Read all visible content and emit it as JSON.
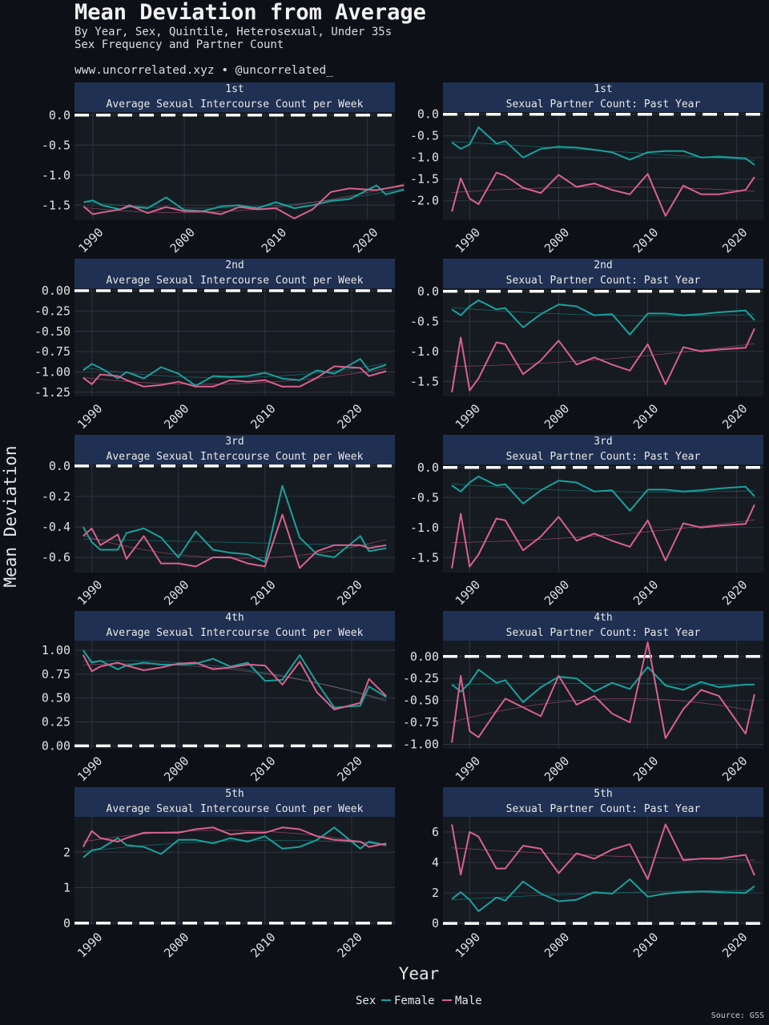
{
  "header": {
    "title": "Mean Deviation from Average",
    "subtitle_line1": "By Year, Sex, Quintile, Heterosexual, Under 35s",
    "subtitle_line2": "Sex Frequency and Partner Count",
    "credit": "www.uncorrelated.xyz • @uncorrelated_"
  },
  "axis": {
    "x_label": "Year",
    "y_label": "Mean Deviation"
  },
  "legend": {
    "title": "Sex",
    "items": [
      {
        "label": "Female",
        "color": "#1aa19b"
      },
      {
        "label": "Male",
        "color": "#d8628d"
      }
    ]
  },
  "source": "Source: GSS",
  "colors": {
    "background": "#0d1117",
    "panel": "#161b22",
    "strip": "#1f3052",
    "grid": "#2e3440",
    "zero_line": "#ffffff"
  },
  "chart_data": [
    {
      "type": "line",
      "quintile": "1st",
      "measure": "Average Sexual Intercourse Count per Week",
      "xlim": [
        1988,
        2023
      ],
      "ylim": [
        -1.75,
        0.05
      ],
      "yticks": [
        0.0,
        -0.5,
        -1.0,
        -1.5
      ],
      "ytick_labels": [
        "0.0",
        "-0.5",
        "-1.0",
        "-1.5"
      ],
      "xticks": [
        1990,
        2000,
        2010,
        2020
      ],
      "x": [
        1989,
        1990,
        1991,
        1993,
        1994,
        1996,
        1998,
        2000,
        2002,
        2004,
        2006,
        2008,
        2010,
        2012,
        2014,
        2016,
        2018,
        2021,
        2022,
        2024
      ],
      "series": [
        {
          "name": "Female",
          "values": [
            -1.45,
            -1.42,
            -1.5,
            -1.57,
            -1.52,
            -1.55,
            -1.37,
            -1.58,
            -1.6,
            -1.52,
            -1.5,
            -1.55,
            -1.45,
            -1.55,
            -1.5,
            -1.43,
            -1.4,
            -1.17,
            -1.32,
            -1.24
          ]
        },
        {
          "name": "Male",
          "values": [
            -1.52,
            -1.65,
            -1.62,
            -1.57,
            -1.5,
            -1.63,
            -1.53,
            -1.6,
            -1.6,
            -1.65,
            -1.53,
            -1.57,
            -1.55,
            -1.72,
            -1.57,
            -1.28,
            -1.22,
            -1.25,
            -1.22,
            -1.17
          ]
        }
      ]
    },
    {
      "type": "line",
      "quintile": "1st",
      "measure": "Sexual Partner Count: Past Year",
      "xlim": [
        1987,
        2023
      ],
      "ylim": [
        -2.45,
        0.05
      ],
      "yticks": [
        0.0,
        -0.5,
        -1.0,
        -1.5,
        -2.0
      ],
      "ytick_labels": [
        "0.0",
        "-0.5",
        "-1.0",
        "-1.5",
        "-2.0"
      ],
      "xticks": [
        1990,
        2000,
        2010,
        2020
      ],
      "x": [
        1988,
        1989,
        1990,
        1991,
        1993,
        1994,
        1996,
        1998,
        2000,
        2002,
        2004,
        2006,
        2008,
        2010,
        2012,
        2014,
        2016,
        2018,
        2021,
        2022
      ],
      "series": [
        {
          "name": "Female",
          "values": [
            -0.65,
            -0.8,
            -0.7,
            -0.3,
            -0.68,
            -0.62,
            -1.0,
            -0.8,
            -0.75,
            -0.77,
            -0.82,
            -0.88,
            -1.05,
            -0.88,
            -0.85,
            -0.85,
            -1.0,
            -0.98,
            -1.02,
            -1.17
          ]
        },
        {
          "name": "Male",
          "values": [
            -2.25,
            -1.48,
            -1.95,
            -2.08,
            -1.35,
            -1.42,
            -1.7,
            -1.82,
            -1.4,
            -1.68,
            -1.6,
            -1.75,
            -1.85,
            -1.38,
            -2.35,
            -1.65,
            -1.85,
            -1.85,
            -1.75,
            -1.45
          ]
        }
      ]
    },
    {
      "type": "line",
      "quintile": "2nd",
      "measure": "Average Sexual Intercourse Count per Week",
      "xlim": [
        1988,
        2025
      ],
      "ylim": [
        -1.3,
        0.03
      ],
      "yticks": [
        0.0,
        -0.25,
        -0.5,
        -0.75,
        -1.0,
        -1.25
      ],
      "ytick_labels": [
        "0.00",
        "-0.25",
        "-0.50",
        "-0.75",
        "-1.00",
        "-1.25"
      ],
      "xticks": [
        1990,
        2000,
        2010,
        2020
      ],
      "x": [
        1989,
        1990,
        1991,
        1993,
        1994,
        1996,
        1998,
        2000,
        2002,
        2004,
        2006,
        2008,
        2010,
        2012,
        2014,
        2016,
        2018,
        2021,
        2022,
        2024
      ],
      "series": [
        {
          "name": "Female",
          "values": [
            -0.98,
            -0.9,
            -0.95,
            -1.08,
            -1.0,
            -1.08,
            -0.94,
            -1.02,
            -1.17,
            -1.05,
            -1.06,
            -1.05,
            -1.01,
            -1.08,
            -1.1,
            -0.98,
            -1.02,
            -0.84,
            -0.98,
            -0.91
          ]
        },
        {
          "name": "Male",
          "values": [
            -1.07,
            -1.15,
            -1.03,
            -1.05,
            -1.1,
            -1.18,
            -1.16,
            -1.12,
            -1.18,
            -1.18,
            -1.1,
            -1.12,
            -1.1,
            -1.18,
            -1.18,
            -1.07,
            -0.93,
            -0.95,
            -1.05,
            -0.99
          ]
        }
      ]
    },
    {
      "type": "line",
      "quintile": "2nd",
      "measure": "Sexual Partner Count: Past Year",
      "xlim": [
        1987,
        2023
      ],
      "ylim": [
        -1.75,
        0.05
      ],
      "yticks": [
        0.0,
        -0.5,
        -1.0,
        -1.5
      ],
      "ytick_labels": [
        "0.0",
        "-0.5",
        "-1.0",
        "-1.5"
      ],
      "xticks": [
        1990,
        2000,
        2010,
        2020
      ],
      "x": [
        1988,
        1989,
        1990,
        1991,
        1993,
        1994,
        1996,
        1998,
        2000,
        2002,
        2004,
        2006,
        2008,
        2010,
        2012,
        2014,
        2016,
        2018,
        2021,
        2022
      ],
      "series": [
        {
          "name": "Female",
          "values": [
            -0.3,
            -0.4,
            -0.25,
            -0.15,
            -0.3,
            -0.28,
            -0.6,
            -0.38,
            -0.22,
            -0.25,
            -0.4,
            -0.38,
            -0.72,
            -0.37,
            -0.37,
            -0.4,
            -0.38,
            -0.35,
            -0.32,
            -0.48
          ]
        },
        {
          "name": "Male",
          "values": [
            -1.68,
            -0.77,
            -1.65,
            -1.45,
            -0.85,
            -0.88,
            -1.38,
            -1.15,
            -0.82,
            -1.22,
            -1.1,
            -1.22,
            -1.32,
            -0.88,
            -1.55,
            -0.93,
            -1.0,
            -0.97,
            -0.94,
            -0.62
          ]
        }
      ]
    },
    {
      "type": "line",
      "quintile": "3rd",
      "measure": "Average Sexual Intercourse Count per Week",
      "xlim": [
        1988,
        2025
      ],
      "ylim": [
        -0.7,
        0.01
      ],
      "yticks": [
        0.0,
        -0.2,
        -0.4,
        -0.6
      ],
      "ytick_labels": [
        "0.0",
        "-0.2",
        "-0.4",
        "-0.6"
      ],
      "xticks": [
        1990,
        2000,
        2010,
        2020
      ],
      "x": [
        1989,
        1990,
        1991,
        1993,
        1994,
        1996,
        1998,
        2000,
        2002,
        2004,
        2006,
        2008,
        2010,
        2012,
        2014,
        2016,
        2018,
        2021,
        2022,
        2024
      ],
      "series": [
        {
          "name": "Female",
          "values": [
            -0.4,
            -0.5,
            -0.55,
            -0.55,
            -0.44,
            -0.41,
            -0.47,
            -0.6,
            -0.43,
            -0.55,
            -0.57,
            -0.58,
            -0.63,
            -0.13,
            -0.47,
            -0.58,
            -0.6,
            -0.46,
            -0.56,
            -0.54
          ]
        },
        {
          "name": "Male",
          "values": [
            -0.46,
            -0.41,
            -0.52,
            -0.45,
            -0.61,
            -0.46,
            -0.64,
            -0.64,
            -0.66,
            -0.6,
            -0.6,
            -0.64,
            -0.66,
            -0.32,
            -0.67,
            -0.56,
            -0.52,
            -0.52,
            -0.54,
            -0.52
          ]
        }
      ]
    },
    {
      "type": "line",
      "quintile": "3rd",
      "measure": "Sexual Partner Count: Past Year",
      "xlim": [
        1987,
        2023
      ],
      "ylim": [
        -1.75,
        0.05
      ],
      "yticks": [
        0.0,
        -0.5,
        -1.0,
        -1.5
      ],
      "ytick_labels": [
        "0.0",
        "-0.5",
        "-1.0",
        "-1.5"
      ],
      "xticks": [
        1990,
        2000,
        2010,
        2020
      ],
      "x": [
        1988,
        1989,
        1990,
        1991,
        1993,
        1994,
        1996,
        1998,
        2000,
        2002,
        2004,
        2006,
        2008,
        2010,
        2012,
        2014,
        2016,
        2018,
        2021,
        2022
      ],
      "series": [
        {
          "name": "Female",
          "values": [
            -0.3,
            -0.4,
            -0.25,
            -0.15,
            -0.3,
            -0.28,
            -0.6,
            -0.38,
            -0.22,
            -0.25,
            -0.4,
            -0.38,
            -0.72,
            -0.37,
            -0.37,
            -0.4,
            -0.38,
            -0.35,
            -0.32,
            -0.48
          ]
        },
        {
          "name": "Male",
          "values": [
            -1.68,
            -0.77,
            -1.65,
            -1.45,
            -0.85,
            -0.88,
            -1.38,
            -1.15,
            -0.82,
            -1.22,
            -1.1,
            -1.22,
            -1.32,
            -0.88,
            -1.55,
            -0.93,
            -1.0,
            -0.97,
            -0.94,
            -0.62
          ]
        }
      ]
    },
    {
      "type": "line",
      "quintile": "4th",
      "measure": "Average Sexual Intercourse Count per Week",
      "xlim": [
        1988,
        2025
      ],
      "ylim": [
        -0.03,
        1.1
      ],
      "yticks": [
        1.0,
        0.75,
        0.5,
        0.25,
        0.0
      ],
      "ytick_labels": [
        "1.00",
        "0.75",
        "0.50",
        "0.25",
        "0.00"
      ],
      "xticks": [
        1990,
        2000,
        2010,
        2020
      ],
      "x": [
        1989,
        1990,
        1991,
        1993,
        1994,
        1996,
        1998,
        2000,
        2002,
        2004,
        2006,
        2008,
        2010,
        2012,
        2014,
        2016,
        2018,
        2021,
        2022,
        2024
      ],
      "series": [
        {
          "name": "Female",
          "values": [
            1.0,
            0.87,
            0.89,
            0.8,
            0.84,
            0.87,
            0.85,
            0.85,
            0.86,
            0.91,
            0.83,
            0.87,
            0.68,
            0.69,
            0.95,
            0.66,
            0.4,
            0.42,
            0.62,
            0.51
          ]
        },
        {
          "name": "Male",
          "values": [
            0.95,
            0.78,
            0.83,
            0.87,
            0.84,
            0.79,
            0.82,
            0.86,
            0.87,
            0.8,
            0.82,
            0.85,
            0.84,
            0.64,
            0.88,
            0.56,
            0.38,
            0.45,
            0.7,
            0.52
          ]
        }
      ]
    },
    {
      "type": "line",
      "quintile": "4th",
      "measure": "Sexual Partner Count: Past Year",
      "xlim": [
        1987,
        2023
      ],
      "ylim": [
        -1.05,
        0.18
      ],
      "yticks": [
        0.0,
        -0.25,
        -0.5,
        -0.75,
        -1.0
      ],
      "ytick_labels": [
        "0.00",
        "-0.25",
        "-0.50",
        "-0.75",
        "-1.00"
      ],
      "xticks": [
        1990,
        2000,
        2010,
        2020
      ],
      "x": [
        1988,
        1989,
        1990,
        1991,
        1993,
        1994,
        1996,
        1998,
        2000,
        2002,
        2004,
        2006,
        2008,
        2010,
        2012,
        2014,
        2016,
        2018,
        2021,
        2022
      ],
      "series": [
        {
          "name": "Female",
          "values": [
            -0.32,
            -0.4,
            -0.3,
            -0.15,
            -0.3,
            -0.27,
            -0.52,
            -0.35,
            -0.23,
            -0.25,
            -0.4,
            -0.3,
            -0.37,
            -0.12,
            -0.33,
            -0.38,
            -0.29,
            -0.35,
            -0.32,
            -0.32
          ]
        },
        {
          "name": "Male",
          "values": [
            -0.98,
            -0.22,
            -0.85,
            -0.92,
            -0.62,
            -0.48,
            -0.58,
            -0.68,
            -0.22,
            -0.55,
            -0.45,
            -0.65,
            -0.75,
            0.16,
            -0.93,
            -0.6,
            -0.38,
            -0.45,
            -0.88,
            -0.43
          ]
        }
      ]
    },
    {
      "type": "line",
      "quintile": "5th",
      "measure": "Average Sexual Intercourse Count per Week",
      "xlim": [
        1988,
        2025
      ],
      "ylim": [
        -0.05,
        3.0
      ],
      "yticks": [
        2,
        1,
        0
      ],
      "ytick_labels": [
        "2",
        "1",
        "0"
      ],
      "xticks": [
        1990,
        2000,
        2010,
        2020
      ],
      "x": [
        1989,
        1990,
        1991,
        1993,
        1994,
        1996,
        1998,
        2000,
        2002,
        2004,
        2006,
        2008,
        2010,
        2012,
        2014,
        2016,
        2018,
        2021,
        2022,
        2024
      ],
      "series": [
        {
          "name": "Female",
          "values": [
            1.85,
            2.05,
            2.1,
            2.4,
            2.2,
            2.15,
            1.95,
            2.35,
            2.35,
            2.25,
            2.4,
            2.3,
            2.45,
            2.1,
            2.15,
            2.35,
            2.7,
            2.1,
            2.3,
            2.2
          ]
        },
        {
          "name": "Male",
          "values": [
            2.15,
            2.6,
            2.4,
            2.3,
            2.4,
            2.55,
            2.55,
            2.55,
            2.65,
            2.7,
            2.5,
            2.55,
            2.55,
            2.7,
            2.65,
            2.45,
            2.35,
            2.3,
            2.15,
            2.25
          ]
        }
      ]
    },
    {
      "type": "line",
      "quintile": "5th",
      "measure": "Sexual Partner Count: Past Year",
      "xlim": [
        1987,
        2023
      ],
      "ylim": [
        -0.1,
        7.0
      ],
      "yticks": [
        6,
        4,
        2,
        0
      ],
      "ytick_labels": [
        "6",
        "4",
        "2",
        "0"
      ],
      "xticks": [
        1990,
        2000,
        2010,
        2020
      ],
      "x": [
        1988,
        1989,
        1990,
        1991,
        1993,
        1994,
        1996,
        1998,
        2000,
        2002,
        2004,
        2006,
        2008,
        2010,
        2012,
        2014,
        2016,
        2018,
        2021,
        2022
      ],
      "series": [
        {
          "name": "Female",
          "values": [
            1.6,
            2.05,
            1.55,
            0.8,
            1.7,
            1.5,
            2.75,
            1.95,
            1.45,
            1.55,
            2.05,
            1.95,
            2.9,
            1.75,
            1.95,
            2.05,
            2.1,
            2.05,
            2.0,
            2.45
          ]
        },
        {
          "name": "Male",
          "values": [
            6.5,
            3.2,
            6.0,
            5.7,
            3.6,
            3.6,
            5.1,
            4.9,
            3.3,
            4.6,
            4.25,
            4.85,
            5.2,
            2.9,
            6.5,
            4.15,
            4.25,
            4.25,
            4.5,
            3.15
          ]
        }
      ]
    }
  ]
}
